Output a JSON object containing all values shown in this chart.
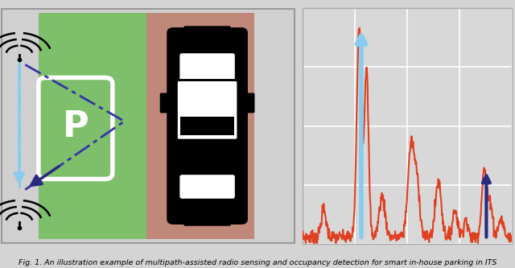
{
  "fig_width": 6.4,
  "fig_height": 3.33,
  "bg_color": "#d4d4d4",
  "left_panel_bg": "#d0d0d0",
  "inner_border_color": "#bbbbbb",
  "green_color": "#7dbf6a",
  "brown_color": "#c08878",
  "p_box_color": "white",
  "p_text_color": "white",
  "car_body_color": "black",
  "car_window_color": "white",
  "ant_color": "black",
  "blue_dash_color": "#7acce8",
  "diag_dash_color": "#3535a8",
  "blue_arrow_color": "#88ccee",
  "dark_arrow_color": "#2a2a80",
  "plot_bg": "#d8d8d8",
  "grid_color": "white",
  "signal_color": "#e04020",
  "caption": "Fig. 1. An illustration example of multipath-assisted radio sensing and occupancy detection for smart in-house parking in ITS"
}
